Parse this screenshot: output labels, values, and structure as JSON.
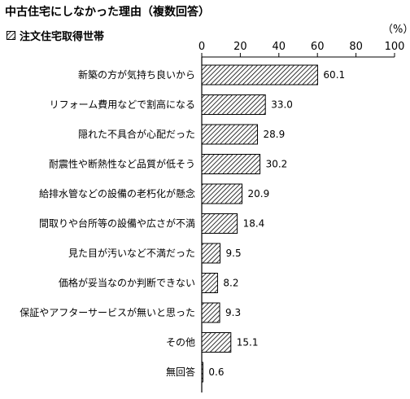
{
  "chart_data": {
    "type": "bar",
    "orientation": "horizontal",
    "title": "中古住宅にしなかった理由（複数回答）",
    "unit_label": "（%）",
    "xlim": [
      0,
      100
    ],
    "xticks": [
      0,
      20,
      40,
      60,
      80,
      100
    ],
    "series": [
      {
        "name": "注文住宅取得世帯",
        "pattern": "diagonal-hatch"
      }
    ],
    "categories": [
      "新築の方が気持ち良いから",
      "リフォーム費用などで割高になる",
      "隠れた不具合が心配だった",
      "耐震性や断熱性など品質が低そう",
      "給排水管などの設備の老朽化が懸念",
      "間取りや台所等の設備や広さが不満",
      "見た目が汚いなど不満だった",
      "価格が妥当なのか判断できない",
      "保証やアフターサービスが無いと思った",
      "その他",
      "無回答"
    ],
    "values": [
      60.1,
      33.0,
      28.9,
      30.2,
      20.9,
      18.4,
      9.5,
      8.2,
      9.3,
      15.1,
      0.6
    ],
    "value_labels": [
      "60.1",
      "33.0",
      "28.9",
      "30.2",
      "20.9",
      "18.4",
      "9.5",
      "8.2",
      "9.3",
      "15.1",
      "0.6"
    ],
    "colors": {
      "bar_stroke": "#000000",
      "hatch": "#000000",
      "background": "#ffffff"
    }
  }
}
